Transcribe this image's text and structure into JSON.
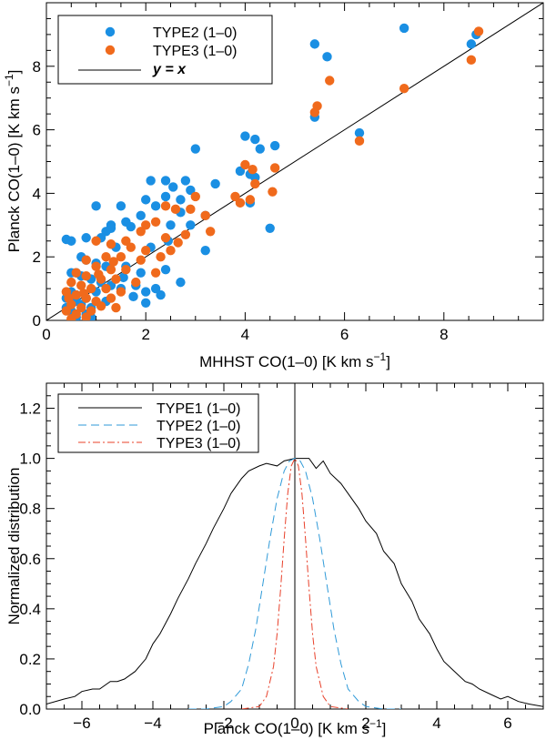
{
  "colors": {
    "blue": "#1a8fe3",
    "orange": "#f06a1c",
    "black": "#000000",
    "dash_blue": "#2f9ad8",
    "dashdot_red": "#e8402a"
  },
  "chart_data": [
    {
      "type": "scatter",
      "title": "",
      "xlabel": "MHHST CO(1–0) [K km s",
      "ylabel": "Planck CO(1–0) [K km s",
      "unit_exponent": "−1",
      "xlim": [
        0,
        10
      ],
      "ylim": [
        0,
        10
      ],
      "xticks": [
        0,
        2,
        4,
        6,
        8
      ],
      "xtick_labels": [
        "0",
        "2",
        "4",
        "6",
        "8"
      ],
      "yticks": [
        0,
        2,
        4,
        6,
        8
      ],
      "ytick_labels": [
        "0",
        "2",
        "4",
        "6",
        "8"
      ],
      "legend": [
        {
          "label": "TYPE2 (1–0)",
          "kind": "dot",
          "color": "#1a8fe3"
        },
        {
          "label": "TYPE3 (1–0)",
          "kind": "dot",
          "color": "#f06a1c"
        },
        {
          "label": "y = x",
          "kind": "line",
          "color": "#000000"
        }
      ],
      "legend_position": "top-left",
      "series": [
        {
          "name": "TYPE2 (1–0)",
          "color": "#1a8fe3",
          "points": [
            [
              7.2,
              9.2
            ],
            [
              8.65,
              9.0
            ],
            [
              8.55,
              8.7
            ],
            [
              5.4,
              8.7
            ],
            [
              5.65,
              8.3
            ],
            [
              5.4,
              6.4
            ],
            [
              6.3,
              5.9
            ],
            [
              4.0,
              5.8
            ],
            [
              4.2,
              5.7
            ],
            [
              4.6,
              5.5
            ],
            [
              3.0,
              5.4
            ],
            [
              4.3,
              5.4
            ],
            [
              3.9,
              4.7
            ],
            [
              4.1,
              4.6
            ],
            [
              4.2,
              4.5
            ],
            [
              2.1,
              4.4
            ],
            [
              2.4,
              4.4
            ],
            [
              2.8,
              4.4
            ],
            [
              3.4,
              4.3
            ],
            [
              2.55,
              4.2
            ],
            [
              2.9,
              4.1
            ],
            [
              2.4,
              3.9
            ],
            [
              2.0,
              3.8
            ],
            [
              2.7,
              3.8
            ],
            [
              2.2,
              3.6
            ],
            [
              1.0,
              3.6
            ],
            [
              1.5,
              3.6
            ],
            [
              2.7,
              3.4
            ],
            [
              1.9,
              3.3
            ],
            [
              3.2,
              3.3
            ],
            [
              1.6,
              3.1
            ],
            [
              1.3,
              3.0
            ],
            [
              2.5,
              3.0
            ],
            [
              2.9,
              3.0
            ],
            [
              1.7,
              2.95
            ],
            [
              1.2,
              2.8
            ],
            [
              1.3,
              2.9
            ],
            [
              4.1,
              3.7
            ],
            [
              4.5,
              2.9
            ],
            [
              0.5,
              2.5
            ],
            [
              0.4,
              2.55
            ],
            [
              0.8,
              2.6
            ],
            [
              1.1,
              2.6
            ],
            [
              1.4,
              2.3
            ],
            [
              2.1,
              2.3
            ],
            [
              2.45,
              2.5
            ],
            [
              3.2,
              2.2
            ],
            [
              0.7,
              2.0
            ],
            [
              0.8,
              1.9
            ],
            [
              1.0,
              1.8
            ],
            [
              1.2,
              1.7
            ],
            [
              1.6,
              1.7
            ],
            [
              1.9,
              1.5
            ],
            [
              2.4,
              1.6
            ],
            [
              2.7,
              1.2
            ],
            [
              0.5,
              1.5
            ],
            [
              0.6,
              1.5
            ],
            [
              0.7,
              1.4
            ],
            [
              0.9,
              1.3
            ],
            [
              1.1,
              1.2
            ],
            [
              1.3,
              1.1
            ],
            [
              1.5,
              1.0
            ],
            [
              1.8,
              1.1
            ],
            [
              2.0,
              0.9
            ],
            [
              2.2,
              1.0
            ],
            [
              2.3,
              0.8
            ],
            [
              0.5,
              0.9
            ],
            [
              0.6,
              0.8
            ],
            [
              0.8,
              0.7
            ],
            [
              1.0,
              0.9
            ],
            [
              1.2,
              0.6
            ],
            [
              0.4,
              0.7
            ],
            [
              0.7,
              0.5
            ],
            [
              0.9,
              0.4
            ],
            [
              0.5,
              0.3
            ],
            [
              0.8,
              0.2
            ],
            [
              0.6,
              0.1
            ],
            [
              0.9,
              0.1
            ],
            [
              0.4,
              0.4
            ],
            [
              0.6,
              0.6
            ],
            [
              2.0,
              0.55
            ],
            [
              1.55,
              1.35
            ],
            [
              1.75,
              0.75
            ]
          ]
        },
        {
          "name": "TYPE3 (1–0)",
          "color": "#f06a1c",
          "points": [
            [
              8.7,
              9.1
            ],
            [
              8.55,
              8.2
            ],
            [
              7.2,
              7.3
            ],
            [
              5.7,
              7.55
            ],
            [
              5.45,
              6.75
            ],
            [
              5.4,
              6.55
            ],
            [
              6.3,
              5.65
            ],
            [
              4.6,
              4.8
            ],
            [
              4.0,
              4.9
            ],
            [
              4.15,
              4.75
            ],
            [
              4.2,
              4.3
            ],
            [
              4.55,
              4.05
            ],
            [
              3.8,
              3.9
            ],
            [
              4.1,
              3.8
            ],
            [
              3.9,
              3.7
            ],
            [
              3.0,
              3.9
            ],
            [
              2.9,
              3.5
            ],
            [
              3.2,
              3.3
            ],
            [
              2.4,
              3.6
            ],
            [
              2.6,
              3.5
            ],
            [
              3.3,
              2.8
            ],
            [
              2.0,
              3.0
            ],
            [
              2.2,
              3.1
            ],
            [
              1.9,
              2.8
            ],
            [
              2.4,
              2.6
            ],
            [
              2.8,
              2.7
            ],
            [
              1.6,
              2.5
            ],
            [
              1.0,
              2.5
            ],
            [
              1.3,
              2.4
            ],
            [
              1.7,
              2.3
            ],
            [
              2.0,
              2.2
            ],
            [
              2.5,
              2.2
            ],
            [
              1.2,
              2.0
            ],
            [
              1.5,
              2.0
            ],
            [
              1.9,
              1.9
            ],
            [
              0.8,
              1.9
            ],
            [
              1.0,
              1.7
            ],
            [
              1.3,
              1.6
            ],
            [
              1.6,
              1.6
            ],
            [
              2.2,
              1.5
            ],
            [
              0.6,
              1.5
            ],
            [
              0.8,
              1.4
            ],
            [
              1.1,
              1.3
            ],
            [
              1.4,
              1.3
            ],
            [
              1.8,
              1.2
            ],
            [
              0.5,
              1.2
            ],
            [
              0.7,
              1.1
            ],
            [
              0.9,
              1.0
            ],
            [
              1.2,
              1.0
            ],
            [
              1.5,
              0.9
            ],
            [
              0.4,
              0.9
            ],
            [
              0.6,
              0.8
            ],
            [
              0.8,
              0.7
            ],
            [
              1.0,
              0.6
            ],
            [
              1.3,
              0.7
            ],
            [
              0.5,
              0.5
            ],
            [
              0.7,
              0.4
            ],
            [
              0.9,
              0.3
            ],
            [
              0.4,
              0.3
            ],
            [
              0.6,
              0.2
            ],
            [
              0.8,
              0.1
            ],
            [
              0.5,
              0.05
            ],
            [
              1.1,
              0.45
            ],
            [
              1.4,
              0.4
            ],
            [
              0.45,
              0.7
            ],
            [
              0.75,
              0.85
            ],
            [
              1.05,
              1.45
            ],
            [
              1.35,
              1.85
            ],
            [
              2.3,
              2.0
            ],
            [
              2.65,
              2.45
            ]
          ]
        }
      ],
      "reference_line": {
        "name": "y = x",
        "slope": 1,
        "intercept": 0
      }
    },
    {
      "type": "line",
      "title": "",
      "xlabel": "Planck CO(1–0) [K km s",
      "ylabel": "Normalized distribution",
      "unit_exponent": "−1",
      "xlim": [
        -7,
        7
      ],
      "ylim": [
        0,
        1.3
      ],
      "xticks": [
        -6,
        -4,
        -2,
        0,
        2,
        4,
        6
      ],
      "xtick_labels": [
        "−6",
        "−4",
        "−2",
        "0",
        "2",
        "4",
        "6"
      ],
      "yticks": [
        0.0,
        0.2,
        0.4,
        0.6,
        0.8,
        1.0,
        1.2
      ],
      "ytick_labels": [
        "0.0",
        "0.2",
        "0.4",
        "0.6",
        "0.8",
        "1.0",
        "1.2"
      ],
      "vertical_line_x": 0,
      "legend_position": "top-left",
      "series": [
        {
          "name": "TYPE1 (1–0)",
          "color": "#000000",
          "dash": "solid",
          "x": [
            -7.0,
            -6.5,
            -6.2,
            -6.0,
            -5.7,
            -5.5,
            -5.2,
            -5.0,
            -4.8,
            -4.5,
            -4.2,
            -4.0,
            -3.8,
            -3.5,
            -3.3,
            -3.0,
            -2.8,
            -2.5,
            -2.3,
            -2.0,
            -1.8,
            -1.5,
            -1.3,
            -1.0,
            -0.8,
            -0.5,
            -0.3,
            0.0,
            0.2,
            0.4,
            0.6,
            0.8,
            1.0,
            1.3,
            1.5,
            1.8,
            2.0,
            2.3,
            2.5,
            2.8,
            3.0,
            3.3,
            3.5,
            3.8,
            4.0,
            4.2,
            4.5,
            4.8,
            5.0,
            5.2,
            5.5,
            5.8,
            6.0,
            6.3,
            6.6,
            7.0
          ],
          "y": [
            0.02,
            0.04,
            0.05,
            0.07,
            0.08,
            0.08,
            0.11,
            0.11,
            0.12,
            0.15,
            0.2,
            0.26,
            0.3,
            0.38,
            0.44,
            0.52,
            0.58,
            0.66,
            0.72,
            0.8,
            0.86,
            0.92,
            0.95,
            0.97,
            0.98,
            0.97,
            0.99,
            1.0,
            1.0,
            1.0,
            0.96,
            0.99,
            0.94,
            0.9,
            0.86,
            0.8,
            0.75,
            0.7,
            0.63,
            0.58,
            0.5,
            0.43,
            0.36,
            0.3,
            0.24,
            0.19,
            0.15,
            0.11,
            0.1,
            0.08,
            0.06,
            0.04,
            0.05,
            0.03,
            0.02,
            0.01
          ]
        },
        {
          "name": "TYPE2 (1–0)",
          "color": "#2f9ad8",
          "dash": "dashed",
          "x": [
            -3.0,
            -2.5,
            -2.0,
            -1.8,
            -1.5,
            -1.3,
            -1.1,
            -0.9,
            -0.7,
            -0.5,
            -0.3,
            -0.15,
            0.0,
            0.15,
            0.3,
            0.5,
            0.7,
            0.9,
            1.1,
            1.3,
            1.5,
            1.8,
            2.0,
            2.5,
            3.0
          ],
          "y": [
            0.0,
            0.0,
            0.01,
            0.03,
            0.08,
            0.18,
            0.32,
            0.5,
            0.68,
            0.84,
            0.95,
            0.99,
            1.0,
            0.99,
            0.95,
            0.84,
            0.68,
            0.5,
            0.32,
            0.18,
            0.08,
            0.03,
            0.01,
            0.0,
            0.0
          ]
        },
        {
          "name": "TYPE3 (1–0)",
          "color": "#e8402a",
          "dash": "dashdot",
          "x": [
            -1.5,
            -1.0,
            -0.8,
            -0.6,
            -0.5,
            -0.4,
            -0.3,
            -0.2,
            -0.1,
            0.0,
            0.1,
            0.2,
            0.3,
            0.4,
            0.5,
            0.6,
            0.8,
            1.0,
            1.5
          ],
          "y": [
            0.0,
            0.01,
            0.05,
            0.17,
            0.3,
            0.48,
            0.68,
            0.86,
            0.97,
            1.0,
            0.97,
            0.86,
            0.68,
            0.48,
            0.3,
            0.17,
            0.05,
            0.01,
            0.0
          ]
        }
      ]
    }
  ]
}
